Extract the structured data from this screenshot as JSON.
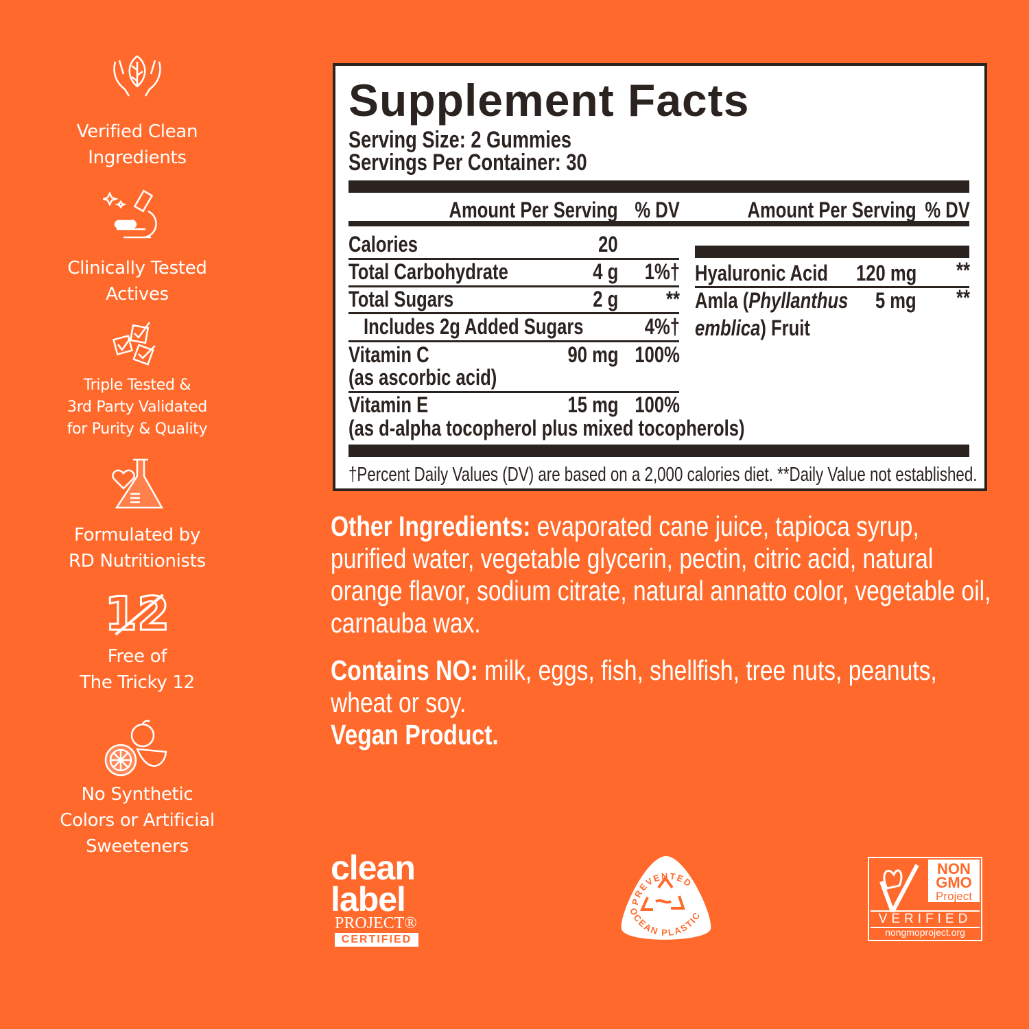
{
  "colors": {
    "background": "#FF6A2C",
    "panel_text": "#2b2320",
    "white": "#ffffff"
  },
  "sidebar": {
    "items": [
      {
        "icon": "hands-leaf-icon",
        "lines": [
          "Verified Clean",
          "Ingredients"
        ]
      },
      {
        "icon": "microscope-icon",
        "lines": [
          "Clinically Tested",
          "Actives"
        ]
      },
      {
        "icon": "checkboxes-icon",
        "lines": [
          "Triple Tested &",
          "3rd Party Validated",
          "for Purity & Quality"
        ]
      },
      {
        "icon": "heart-flask-icon",
        "lines": [
          "Formulated by",
          "RD Nutritionists"
        ]
      },
      {
        "icon": "crossed-12-icon",
        "glyph": "12",
        "lines": [
          "Free of",
          "The Tricky 12"
        ]
      },
      {
        "icon": "fruits-icon",
        "lines": [
          "No Synthetic",
          "Colors or Artificial",
          "Sweeteners"
        ]
      }
    ]
  },
  "facts": {
    "title": "Supplement Facts",
    "serving_size": "Serving Size: 2 Gummies",
    "servings_per_container": "Servings Per Container: 30",
    "header": {
      "amount": "Amount Per Serving",
      "dv": "% DV"
    },
    "left_rows": [
      {
        "name": "Calories",
        "amount": "20",
        "dv": ""
      },
      {
        "name": "Total Carbohydrate",
        "amount": "4 g",
        "dv": "1%†"
      },
      {
        "name": "Total Sugars",
        "amount": "2 g",
        "dv": "**"
      },
      {
        "name": "Includes 2g Added Sugars",
        "amount": "",
        "dv": "4%†"
      },
      {
        "name": "Vitamin C",
        "sub": "(as ascorbic acid)",
        "amount": "90 mg",
        "dv": "100%"
      },
      {
        "name": "Vitamin E",
        "sub": "(as d-alpha tocopherol plus mixed tocopherols)",
        "amount": "15 mg",
        "dv": "100%"
      }
    ],
    "right_rows": [
      {
        "name": "Hyaluronic Acid",
        "amount": "120 mg",
        "dv": "**"
      },
      {
        "name_pre": "Amla (",
        "name_italic": "Phyllanthus",
        "name_italic2": "emblica",
        "name_post": ") Fruit",
        "amount": "5 mg",
        "dv": "**"
      }
    ],
    "footnote": "†Percent Daily Values (DV) are based on a 2,000 calories diet. **Daily Value not established."
  },
  "ingredients": {
    "other_label": "Other Ingredients:",
    "other_text": " evaporated cane juice, tapioca syrup, purified water, vegetable glycerin, pectin, citric acid, natural orange flavor, sodium citrate, natural annatto color, vegetable oil, carnauba wax.",
    "contains_label": "Contains NO:",
    "contains_text": " milk, eggs, fish, shellfish, tree nuts, peanuts, wheat or soy.",
    "vegan": "Vegan Product."
  },
  "badges": {
    "clean_label": {
      "line1": "clean",
      "line2": "label",
      "line3": "PROJECT®",
      "line4": "CERTIFIED"
    },
    "ocean": {
      "top": "PREVENTED",
      "bottom": "OCEAN PLASTIC"
    },
    "nongmo": {
      "line1": "NON",
      "line2": "GMO",
      "line3": "Project",
      "line4": "VERIFIED",
      "url": "nongmoproject.org"
    }
  }
}
